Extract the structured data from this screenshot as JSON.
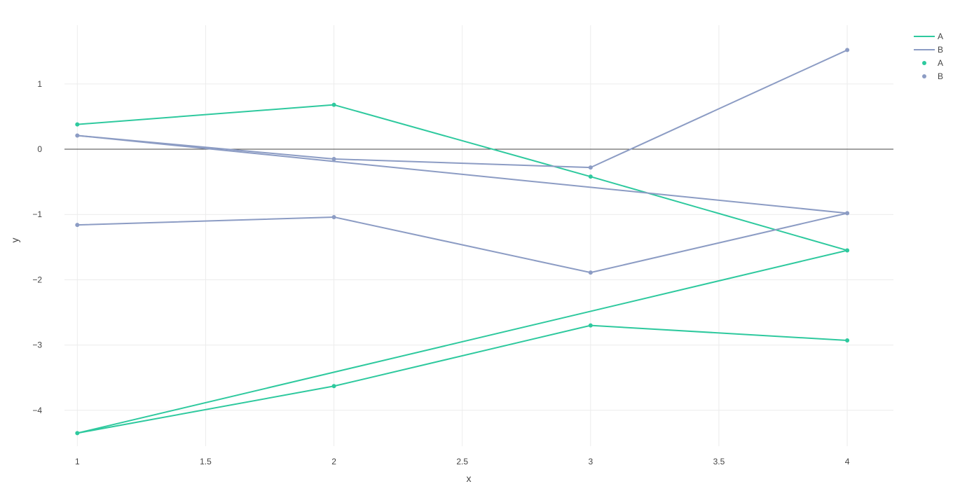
{
  "chart_data": {
    "type": "line",
    "title": "",
    "xlabel": "x",
    "ylabel": "y",
    "xlim": [
      0.95,
      4.18
    ],
    "ylim": [
      -4.55,
      1.9
    ],
    "xticks": [
      1,
      1.5,
      2,
      2.5,
      3,
      3.5,
      4
    ],
    "xtick_labels": [
      "1",
      "1.5",
      "2",
      "2.5",
      "3",
      "3.5",
      "4"
    ],
    "yticks": [
      1,
      0,
      -1,
      -2,
      -3,
      -4
    ],
    "ytick_labels": [
      "1",
      "0",
      "−1",
      "−2",
      "−3",
      "−4"
    ],
    "grid": true,
    "zero_line": true,
    "legend_position": "top-right",
    "colors": {
      "A": "#2ec99e",
      "B": "#8c9cc4",
      "grid": "#ececec",
      "zero": "#444444"
    },
    "line_series": [
      {
        "name": "A",
        "color": "#2ec99e",
        "x": [
          1,
          2,
          3,
          4
        ],
        "y": [
          0.38,
          0.68,
          -0.42,
          -1.55
        ]
      },
      {
        "name": "A",
        "color": "#2ec99e",
        "x": [
          1,
          2,
          3,
          4
        ],
        "y": [
          -4.35,
          -3.63,
          -2.7,
          -2.93
        ]
      },
      {
        "name": "A",
        "color": "#2ec99e",
        "x": [
          1,
          4
        ],
        "y": [
          -4.35,
          -1.55
        ]
      },
      {
        "name": "B",
        "color": "#8c9cc4",
        "x": [
          1,
          2,
          3,
          4
        ],
        "y": [
          0.21,
          -0.15,
          -0.28,
          1.52
        ]
      },
      {
        "name": "B",
        "color": "#8c9cc4",
        "x": [
          1,
          2,
          3,
          4
        ],
        "y": [
          -1.16,
          -1.04,
          -1.89,
          -0.98
        ]
      },
      {
        "name": "B",
        "color": "#8c9cc4",
        "x": [
          1,
          4
        ],
        "y": [
          0.21,
          -0.98
        ]
      }
    ],
    "point_series": [
      {
        "name": "A",
        "color": "#2ec99e",
        "x": [
          1,
          2,
          3,
          4,
          1,
          2,
          3,
          4
        ],
        "y": [
          0.38,
          0.68,
          -0.42,
          -1.55,
          -4.35,
          -3.63,
          -2.7,
          -2.93
        ]
      },
      {
        "name": "B",
        "color": "#8c9cc4",
        "x": [
          1,
          2,
          3,
          4,
          1,
          2,
          3,
          4
        ],
        "y": [
          0.21,
          -0.15,
          -0.28,
          1.52,
          -1.16,
          -1.04,
          -1.89,
          -0.98
        ]
      }
    ],
    "legend": [
      {
        "label": "A",
        "kind": "line",
        "color": "#2ec99e"
      },
      {
        "label": "B",
        "kind": "line",
        "color": "#8c9cc4"
      },
      {
        "label": "A",
        "kind": "marker",
        "color": "#2ec99e"
      },
      {
        "label": "B",
        "kind": "marker",
        "color": "#8c9cc4"
      }
    ]
  }
}
